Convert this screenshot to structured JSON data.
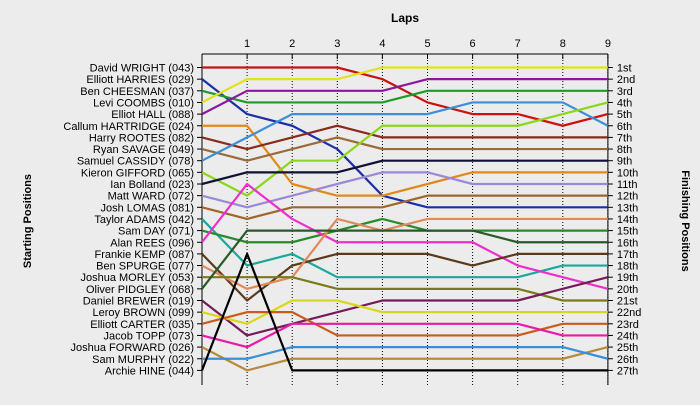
{
  "chart_data": {
    "type": "line",
    "title": "Laps",
    "ylabel_left": "Starting Positions",
    "ylabel_right": "Finishing Positions",
    "x": [
      0,
      1,
      2,
      3,
      4,
      5,
      6,
      7,
      8,
      9
    ],
    "x_tick_labels": [
      "1",
      "2",
      "3",
      "4",
      "5",
      "6",
      "7",
      "8",
      "9"
    ],
    "finishing_labels": [
      "1st",
      "2nd",
      "3rd",
      "4th",
      "5th",
      "6th",
      "7th",
      "8th",
      "9th",
      "10th",
      "11th",
      "12th",
      "13th",
      "14th",
      "15th",
      "16th",
      "17th",
      "18th",
      "19th",
      "20th",
      "21st",
      "22nd",
      "23rd",
      "24th",
      "25th",
      "26th",
      "27th"
    ],
    "grid": "vertical",
    "series": [
      {
        "name": "David WRIGHT (043)",
        "color": "#cc1111",
        "values": [
          1,
          1,
          1,
          1,
          2,
          4,
          5,
          5,
          6,
          5
        ]
      },
      {
        "name": "Elliott HARRIES (029)",
        "color": "#1a2fa8",
        "values": [
          2,
          5,
          6,
          8,
          12,
          13,
          13,
          13,
          13,
          13
        ]
      },
      {
        "name": "Ben CHEESMAN (037)",
        "color": "#1e9a2a",
        "values": [
          3,
          4,
          4,
          4,
          4,
          3,
          3,
          3,
          3,
          3
        ]
      },
      {
        "name": "Levi COOMBS (010)",
        "color": "#e2e21a",
        "values": [
          4,
          2,
          2,
          2,
          1,
          1,
          1,
          1,
          1,
          1
        ]
      },
      {
        "name": "Elliot HALL (088)",
        "color": "#8a1a9a",
        "values": [
          5,
          3,
          3,
          3,
          3,
          2,
          2,
          2,
          2,
          2
        ]
      },
      {
        "name": "Callum HARTRIDGE (024)",
        "color": "#e08a1a",
        "values": [
          6,
          6,
          11,
          12,
          12,
          11,
          10,
          10,
          10,
          10
        ]
      },
      {
        "name": "Harry ROOTES (082)",
        "color": "#8b2a1a",
        "values": [
          7,
          8,
          7,
          6,
          7,
          7,
          7,
          7,
          7,
          7
        ]
      },
      {
        "name": "Ryan SAVAGE (049)",
        "color": "#9a6b3a",
        "values": [
          8,
          9,
          8,
          7,
          8,
          8,
          8,
          8,
          8,
          8
        ]
      },
      {
        "name": "Samuel CASSIDY (078)",
        "color": "#3a8fd8",
        "values": [
          9,
          7,
          5,
          5,
          5,
          5,
          4,
          4,
          4,
          6
        ]
      },
      {
        "name": "Kieron GIFFORD (065)",
        "color": "#8bd81a",
        "values": [
          10,
          12,
          9,
          9,
          6,
          6,
          6,
          6,
          5,
          4
        ]
      },
      {
        "name": "Ian Bolland (023)",
        "color": "#111133",
        "values": [
          11,
          10,
          10,
          10,
          9,
          9,
          9,
          9,
          9,
          9
        ]
      },
      {
        "name": "Matt WARD (072)",
        "color": "#9a88d8",
        "values": [
          12,
          13,
          12,
          11,
          10,
          10,
          11,
          11,
          11,
          11
        ]
      },
      {
        "name": "Josh LOMAS (081)",
        "color": "#a0642a",
        "values": [
          13,
          14,
          13,
          13,
          13,
          12,
          12,
          12,
          12,
          12
        ]
      },
      {
        "name": "Taylor ADAMS (042)",
        "color": "#1aa89a",
        "values": [
          14,
          18,
          17,
          19,
          19,
          19,
          19,
          19,
          18,
          18
        ]
      },
      {
        "name": "Sam DAY (071)",
        "color": "#2a8a2a",
        "values": [
          15,
          16,
          16,
          15,
          14,
          15,
          15,
          15,
          15,
          15
        ]
      },
      {
        "name": "Alan REES (096)",
        "color": "#ee2ecc",
        "values": [
          16,
          11,
          14,
          16,
          16,
          16,
          16,
          18,
          19,
          20
        ]
      },
      {
        "name": "Frankie KEMP (087)",
        "color": "#5a3a1a",
        "values": [
          17,
          21,
          18,
          17,
          17,
          17,
          18,
          17,
          17,
          17
        ]
      },
      {
        "name": "Ben SPURGE (077)",
        "color": "#e08a5a",
        "values": [
          18,
          20,
          19,
          14,
          15,
          14,
          14,
          14,
          14,
          14
        ]
      },
      {
        "name": "Joshua MORLEY (053)",
        "color": "#7a7a1a",
        "values": [
          19,
          19,
          19,
          20,
          20,
          20,
          20,
          20,
          21,
          21
        ]
      },
      {
        "name": "Oliver PIDGLEY (068)",
        "color": "#2a5a2a",
        "values": [
          20,
          15,
          15,
          15,
          15,
          15,
          15,
          16,
          16,
          16
        ]
      },
      {
        "name": "Daniel BREWER (019)",
        "color": "#771a5a",
        "values": [
          21,
          24,
          23,
          22,
          21,
          21,
          21,
          21,
          20,
          19
        ]
      },
      {
        "name": "Leroy BROWN (099)",
        "color": "#d8d81a",
        "values": [
          22,
          23,
          21,
          21,
          22,
          22,
          22,
          22,
          22,
          22
        ]
      },
      {
        "name": "Elliott CARTER (035)",
        "color": "#cc5a1a",
        "values": [
          23,
          22,
          22,
          24,
          24,
          24,
          24,
          24,
          23,
          23
        ]
      },
      {
        "name": "Jacob TOPP (073)",
        "color": "#e81aaa",
        "values": [
          24,
          25,
          23,
          23,
          23,
          23,
          23,
          23,
          24,
          24
        ]
      },
      {
        "name": "Joshua FORWARD (026)",
        "color": "#b88a3a",
        "values": [
          25,
          27,
          26,
          26,
          26,
          26,
          26,
          26,
          26,
          25
        ]
      },
      {
        "name": "Sam MURPHY (022)",
        "color": "#3a8fd8",
        "values": [
          26,
          26,
          25,
          25,
          25,
          25,
          25,
          25,
          25,
          26
        ]
      },
      {
        "name": "Archie HINE (044)",
        "color": "#000000",
        "values": [
          27,
          17,
          27,
          27,
          27,
          27,
          27,
          27,
          27,
          27
        ]
      }
    ]
  }
}
